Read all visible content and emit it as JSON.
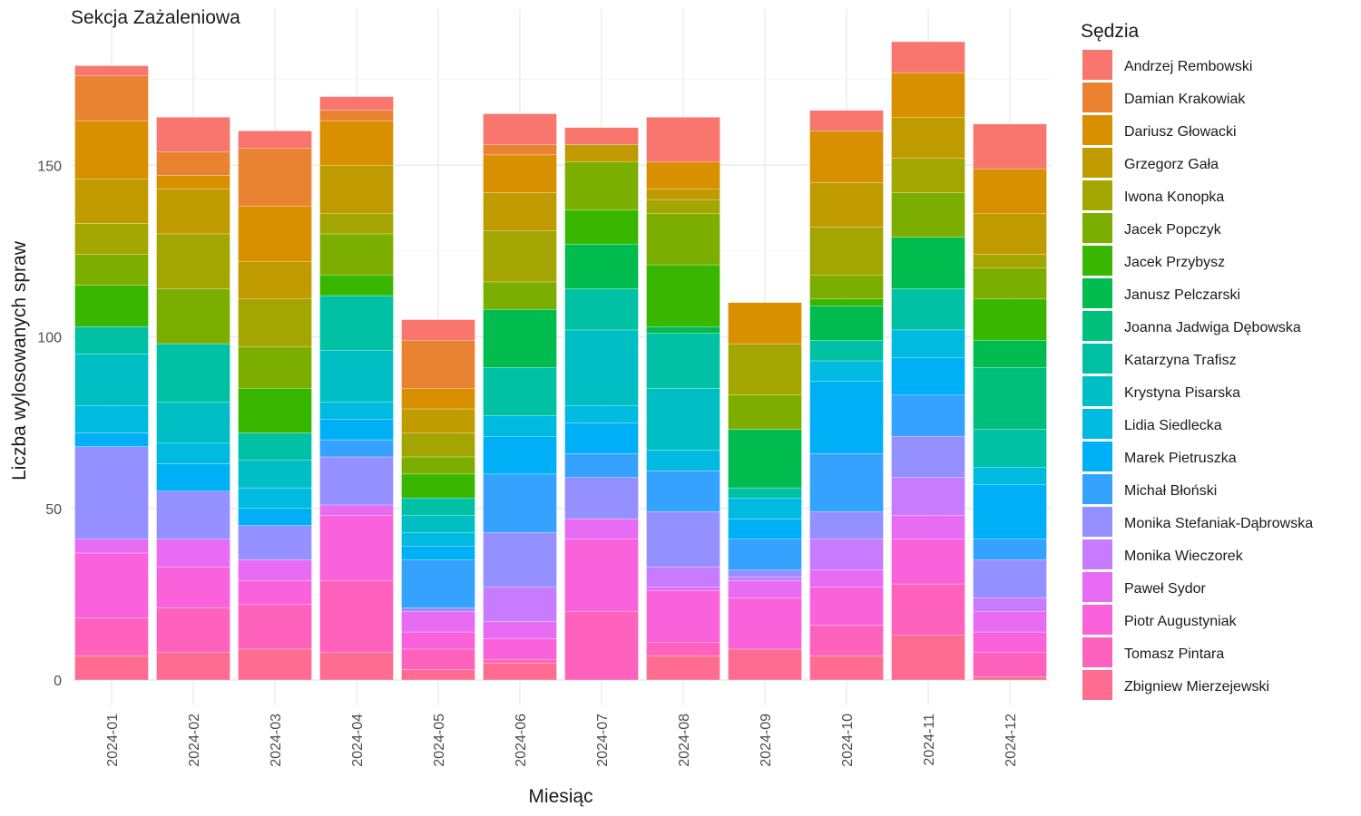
{
  "chart_data": {
    "type": "bar",
    "stacked": true,
    "title": "Sekcja Zażaleniowa",
    "xlabel": "Miesiąc",
    "ylabel": "Liczba wylosowanych spraw",
    "ylim": [
      0,
      188
    ],
    "yticks": [
      0,
      50,
      100,
      150
    ],
    "grid": true,
    "legend_position": "right",
    "legend_title": "Sędzia",
    "categories": [
      "2024-01",
      "2024-02",
      "2024-03",
      "2024-04",
      "2024-05",
      "2024-06",
      "2024-07",
      "2024-08",
      "2024-09",
      "2024-10",
      "2024-11",
      "2024-12"
    ],
    "series": [
      {
        "name": "Andrzej Rembowski",
        "color": "#F8766D",
        "values": [
          3,
          10,
          5,
          4,
          6,
          9,
          5,
          13,
          0,
          6,
          9,
          13
        ]
      },
      {
        "name": "Damian Krakowiak",
        "color": "#EA8331",
        "values": [
          13,
          7,
          17,
          3,
          14,
          3,
          0,
          0,
          0,
          0,
          0,
          0
        ]
      },
      {
        "name": "Dariusz Głowacki",
        "color": "#D89000",
        "values": [
          17,
          4,
          16,
          13,
          6,
          11,
          0,
          8,
          12,
          15,
          13,
          13
        ]
      },
      {
        "name": "Grzegorz Gała",
        "color": "#C09B00",
        "values": [
          13,
          13,
          11,
          14,
          7,
          11,
          5,
          3,
          0,
          13,
          12,
          12
        ]
      },
      {
        "name": "Iwona Konopka",
        "color": "#A3A500",
        "values": [
          9,
          16,
          14,
          6,
          7,
          15,
          0,
          4,
          15,
          14,
          10,
          4
        ]
      },
      {
        "name": "Jacek Popczyk",
        "color": "#7CAE00",
        "values": [
          9,
          16,
          12,
          12,
          5,
          8,
          14,
          15,
          10,
          7,
          13,
          9
        ]
      },
      {
        "name": "Jacek Przybysz",
        "color": "#39B600",
        "values": [
          12,
          0,
          13,
          6,
          7,
          0,
          10,
          18,
          0,
          2,
          0,
          12
        ]
      },
      {
        "name": "Janusz Pelczarski",
        "color": "#00BB4E",
        "values": [
          0,
          0,
          0,
          0,
          0,
          17,
          13,
          2,
          17,
          10,
          15,
          8
        ]
      },
      {
        "name": "Joanna Jadwiga Dębowska",
        "color": "#00BF7D",
        "values": [
          0,
          0,
          0,
          0,
          0,
          0,
          0,
          0,
          0,
          0,
          0,
          18
        ]
      },
      {
        "name": "Katarzyna Trafisz",
        "color": "#00C1A3",
        "values": [
          8,
          17,
          8,
          16,
          5,
          14,
          12,
          16,
          3,
          6,
          12,
          11
        ]
      },
      {
        "name": "Krystyna Pisarska",
        "color": "#00BFC4",
        "values": [
          15,
          12,
          8,
          15,
          5,
          0,
          22,
          18,
          0,
          0,
          0,
          0
        ]
      },
      {
        "name": "Lidia Siedlecka",
        "color": "#00BAE0",
        "values": [
          8,
          6,
          6,
          5,
          4,
          6,
          5,
          6,
          6,
          6,
          8,
          5
        ]
      },
      {
        "name": "Marek Pietruszka",
        "color": "#00B0F6",
        "values": [
          4,
          8,
          5,
          6,
          4,
          11,
          9,
          0,
          6,
          21,
          11,
          16
        ]
      },
      {
        "name": "Michał Błoński",
        "color": "#35A2FF",
        "values": [
          0,
          0,
          0,
          5,
          14,
          17,
          7,
          12,
          9,
          17,
          12,
          6
        ]
      },
      {
        "name": "Monika Stefaniak-Dąbrowska",
        "color": "#9590FF",
        "values": [
          27,
          14,
          10,
          14,
          1,
          16,
          12,
          16,
          2,
          8,
          12,
          11
        ]
      },
      {
        "name": "Monika Wieczorek",
        "color": "#C77CFF",
        "values": [
          0,
          0,
          0,
          0,
          0,
          10,
          0,
          6,
          1,
          9,
          11,
          4
        ]
      },
      {
        "name": "Paweł Sydor",
        "color": "#E76BF3",
        "values": [
          4,
          8,
          6,
          3,
          6,
          5,
          6,
          1,
          5,
          5,
          7,
          6
        ]
      },
      {
        "name": "Piotr Augustyniak",
        "color": "#FA62DB",
        "values": [
          19,
          12,
          7,
          19,
          5,
          6,
          21,
          15,
          15,
          11,
          13,
          6
        ]
      },
      {
        "name": "Tomasz Pintara",
        "color": "#FF62BC",
        "values": [
          11,
          13,
          13,
          21,
          6,
          1,
          20,
          4,
          0,
          9,
          15,
          7
        ]
      },
      {
        "name": "Zbigniew Mierzejewski",
        "color": "#FF6C91",
        "values": [
          7,
          8,
          9,
          8,
          3,
          5,
          0,
          7,
          9,
          7,
          13,
          1
        ]
      }
    ]
  }
}
